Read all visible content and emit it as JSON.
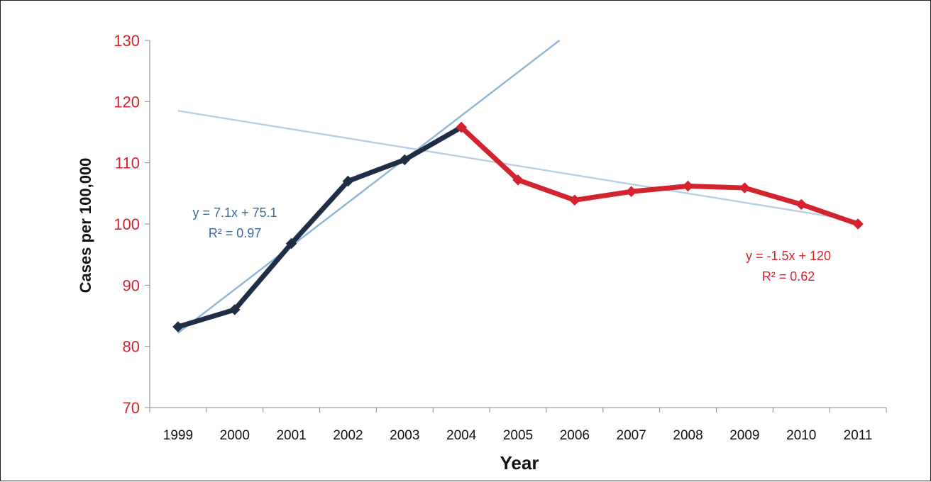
{
  "chart_data": {
    "type": "line",
    "title": "",
    "xlabel": "Year",
    "ylabel": "Cases per 100,000",
    "categories": [
      "1999",
      "2000",
      "2001",
      "2002",
      "2003",
      "2004",
      "2005",
      "2006",
      "2007",
      "2008",
      "2009",
      "2010",
      "2011"
    ],
    "ylim": [
      70,
      130
    ],
    "yticks": [
      70,
      80,
      90,
      100,
      110,
      120,
      130
    ],
    "grid": false,
    "legend": "none",
    "series": [
      {
        "color": "#1f2d45",
        "x": [
          "1999",
          "2000",
          "2001",
          "2002",
          "2003",
          "2004"
        ],
        "values": [
          83.2,
          86.0,
          96.8,
          107.0,
          110.5,
          115.8
        ]
      },
      {
        "color": "#d3232f",
        "x": [
          "2004",
          "2005",
          "2006",
          "2007",
          "2008",
          "2009",
          "2010",
          "2011"
        ],
        "values": [
          115.8,
          107.2,
          103.9,
          105.3,
          106.2,
          105.9,
          103.2,
          100.0
        ]
      }
    ],
    "trendlines": [
      {
        "color": "#8fb5d6",
        "equation": "y = 7.1x + 75.1",
        "r2": "R² = 0.97",
        "slope": 7.1,
        "intercept": 75.1,
        "from_x": 1,
        "to_x": 7.8,
        "label_color": "#3d6aa0"
      },
      {
        "color": "#b8cfe3",
        "equation": "y = -1.5x + 120",
        "r2": "R² = 0.62",
        "slope": -1.5,
        "intercept": 120,
        "from_x": 1,
        "to_x": 13,
        "label_color": "#d3232f"
      }
    ],
    "ytick_color": "#d3232f"
  }
}
